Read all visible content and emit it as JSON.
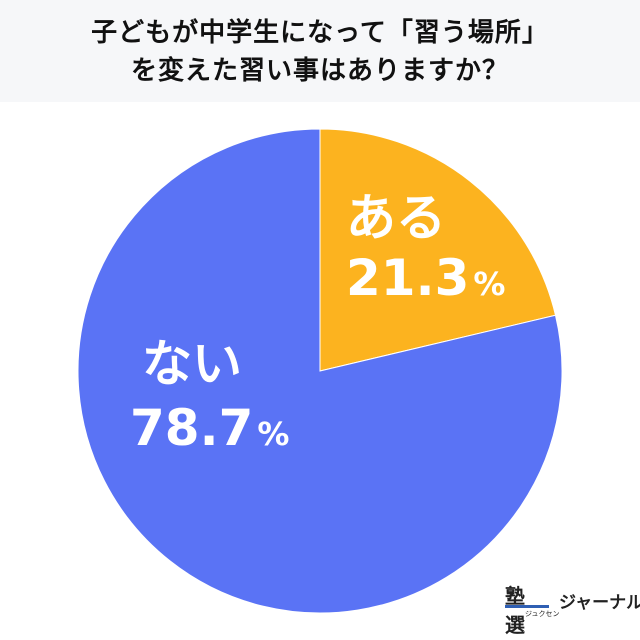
{
  "chart_data": {
    "type": "pie",
    "title": [
      "子どもが中学生になって「習う場所」",
      "を変えた習い事はありますか？"
    ],
    "slices": [
      {
        "label": "ある",
        "value": 21.3,
        "display": "21.3",
        "unit": "%",
        "color": "#fcb31f"
      },
      {
        "label": "ない",
        "value": 78.7,
        "display": "78.7",
        "unit": "%",
        "color": "#5a73f5"
      }
    ],
    "start": "12 o'clock, clockwise"
  },
  "logo": {
    "main": "塾選",
    "sub": "ジュクセン",
    "suffix": "ジャーナル"
  }
}
